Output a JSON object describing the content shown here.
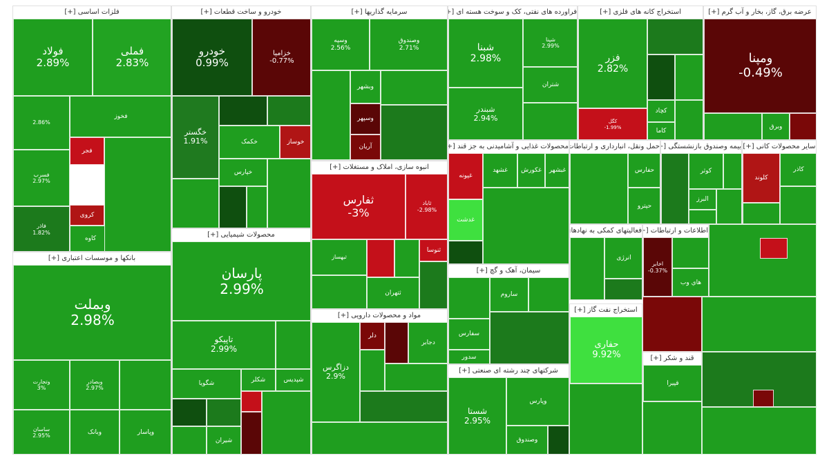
{
  "chart_data": {
    "type": "treemap",
    "title": "",
    "color_scale": {
      "strong_up": "#3fe03f",
      "up": "#1f9e1f",
      "flat_up": "#1c7a1c",
      "dark_green": "#0f4f0f",
      "down": "#c4101a",
      "strong_down": "#5a0606"
    },
    "sectors": [
      {
        "name": "فلزات اساسی [+]",
        "stocks": [
          {
            "symbol": "فولاد",
            "change": "2.89%",
            "color": "#1f9e1f"
          },
          {
            "symbol": "فملی",
            "change": "2.83%",
            "color": "#22a322"
          },
          {
            "symbol": "",
            "change": "2.86%",
            "color": "#1f9e1f"
          },
          {
            "symbol": "فخوز",
            "change": "",
            "color": "#1f9e1f"
          },
          {
            "symbol": "فجر",
            "change": "",
            "color": "#c4101a"
          },
          {
            "symbol": "فسرب",
            "change": "2.97%",
            "color": "#1f9e1f"
          },
          {
            "symbol": "فاذر",
            "change": "1.82%",
            "color": "#1c7a1c"
          },
          {
            "symbol": "کاوه",
            "change": "",
            "color": "#1f9e1f"
          },
          {
            "symbol": "کروی",
            "change": "",
            "color": "#b01515"
          }
        ]
      },
      {
        "name": "بانکها و موسسات اعتباری [+]",
        "stocks": [
          {
            "symbol": "وبملت",
            "change": "2.98%",
            "color": "#1f9e1f"
          },
          {
            "symbol": "وتجارت",
            "change": "3%",
            "color": "#1f9e1f"
          },
          {
            "symbol": "وبصادر",
            "change": "2.97%",
            "color": "#1f9e1f"
          },
          {
            "symbol": "ساسان",
            "change": "2.95%",
            "color": "#1f9e1f"
          },
          {
            "symbol": "وپاسار",
            "change": "",
            "color": "#1f9e1f"
          },
          {
            "symbol": "وبانک",
            "change": "",
            "color": "#1f9e1f"
          }
        ]
      },
      {
        "name": "خودرو و ساخت قطعات [+]",
        "stocks": [
          {
            "symbol": "خودرو",
            "change": "0.99%",
            "color": "#0f4f0f"
          },
          {
            "symbol": "خزامیا",
            "change": "-0.77%",
            "color": "#5a0606"
          },
          {
            "symbol": "خگستر",
            "change": "1.91%",
            "color": "#1f7a1f"
          },
          {
            "symbol": "خکمک",
            "change": "",
            "color": "#1f9e1f"
          },
          {
            "symbol": "خوساز",
            "change": "",
            "color": "#b01515"
          },
          {
            "symbol": "خپارس",
            "change": "",
            "color": "#1f9e1f"
          }
        ]
      },
      {
        "name": "محصولات شیمیایی [+]",
        "stocks": [
          {
            "symbol": "پارسان",
            "change": "2.99%",
            "color": "#1f9e1f"
          },
          {
            "symbol": "تاپیکو",
            "change": "2.99%",
            "color": "#1f9e1f"
          },
          {
            "symbol": "شکلر",
            "change": "",
            "color": "#1f9e1f"
          },
          {
            "symbol": "شپدیس",
            "change": "",
            "color": "#1f9e1f"
          },
          {
            "symbol": "شگویا",
            "change": "",
            "color": "#1f9e1f"
          },
          {
            "symbol": "شیران",
            "change": "",
            "color": "#1f9e1f"
          }
        ]
      },
      {
        "name": "سرمایه گذاریها [+]",
        "stocks": [
          {
            "symbol": "وسپه",
            "change": "2.56%",
            "color": "#1f9e1f"
          },
          {
            "symbol": "وصندوق",
            "change": "2.71%",
            "color": "#1f9e1f"
          },
          {
            "symbol": "وبشهر",
            "change": "",
            "color": "#1f9e1f"
          },
          {
            "symbol": "وسپهر",
            "change": "",
            "color": "#5a0606"
          },
          {
            "symbol": "آریان",
            "change": "",
            "color": "#7a0808"
          }
        ]
      },
      {
        "name": "انبوه سازی، املاک و مستغلات [+]",
        "stocks": [
          {
            "symbol": "ثفارس",
            "change": "-3%",
            "color": "#c4101a"
          },
          {
            "symbol": "ثاباد",
            "change": "-2.98%",
            "color": "#c4101a"
          },
          {
            "symbol": "ثنوسا",
            "change": "",
            "color": "#c4101a"
          },
          {
            "symbol": "ثبهساز",
            "change": "",
            "color": "#1f9e1f"
          },
          {
            "symbol": "ثتهران",
            "change": "",
            "color": "#1f9e1f"
          }
        ]
      },
      {
        "name": "مواد و محصولات دارویی [+]",
        "stocks": [
          {
            "symbol": "دزاگرس",
            "change": "2.9%",
            "color": "#1f9e1f"
          },
          {
            "symbol": "دجابر",
            "change": "",
            "color": "#1f9e1f"
          },
          {
            "symbol": "دلر",
            "change": "",
            "color": "#7a0808"
          }
        ]
      },
      {
        "name": "فراورده های نفتی، کک و سوخت هسته ای [+]",
        "stocks": [
          {
            "symbol": "شبنا",
            "change": "2.98%",
            "color": "#1f9e1f"
          },
          {
            "symbol": "شبندر",
            "change": "2.94%",
            "color": "#1f9e1f"
          },
          {
            "symbol": "شپنا",
            "change": "2.99%",
            "color": "#1f9e1f"
          },
          {
            "symbol": "شتران",
            "change": "",
            "color": "#1f9e1f"
          }
        ]
      },
      {
        "name": "محصولات غذایی و آشامیدنی به جز قند [+]",
        "stocks": [
          {
            "symbol": "غشهد",
            "change": "",
            "color": "#1f9e1f"
          },
          {
            "symbol": "غکورش",
            "change": "",
            "color": "#1f9e1f"
          },
          {
            "symbol": "غبشهر",
            "change": "",
            "color": "#1f9e1f"
          },
          {
            "symbol": "غدشت",
            "change": "",
            "color": "#3fe03f"
          },
          {
            "symbol": "غپونه",
            "change": "",
            "color": "#c4101a"
          }
        ]
      },
      {
        "name": "سیمان، آهک و گچ [+]",
        "stocks": [
          {
            "symbol": "سفارس",
            "change": "",
            "color": "#1f9e1f"
          },
          {
            "symbol": "ساروم",
            "change": "",
            "color": "#1f9e1f"
          },
          {
            "symbol": "سدور",
            "change": "",
            "color": "#1f9e1f"
          }
        ]
      },
      {
        "name": "شرکتهای چند رشته ای صنعتی [+]",
        "stocks": [
          {
            "symbol": "شستا",
            "change": "2.95%",
            "color": "#1f9e1f"
          },
          {
            "symbol": "وصندوق",
            "change": "",
            "color": "#1f9e1f"
          },
          {
            "symbol": "وپارس",
            "change": "",
            "color": "#1f9e1f"
          }
        ]
      },
      {
        "name": "استخراج کانه های فلزی [+]",
        "stocks": [
          {
            "symbol": "فزر",
            "change": "2.82%",
            "color": "#1f9e1f"
          },
          {
            "symbol": "کگل",
            "change": "-1.99%",
            "color": "#c4101a"
          },
          {
            "symbol": "کچاد",
            "change": "",
            "color": "#1f9e1f"
          },
          {
            "symbol": "کاما",
            "change": "",
            "color": "#1f9e1f"
          }
        ]
      },
      {
        "name": "عرضه برق، گاز، بخار و آب گرم [+]",
        "stocks": [
          {
            "symbol": "ومپنا",
            "change": "-0.49%",
            "color": "#5a0606"
          },
          {
            "symbol": "وبرق",
            "change": "",
            "color": "#1f9e1f"
          }
        ]
      },
      {
        "name": "حمل ونقل، انبارداری و ارتباطات [+]",
        "stocks": [
          {
            "symbol": "حفارس",
            "change": "",
            "color": "#1f9e1f"
          },
          {
            "symbol": "حپترو",
            "change": "",
            "color": "#1f9e1f"
          }
        ]
      },
      {
        "name": "بیمه وصندوق بازنشستگی [+]",
        "stocks": [
          {
            "symbol": "البرز",
            "change": "",
            "color": "#1f9e1f"
          },
          {
            "symbol": "کوثر",
            "change": "",
            "color": "#1f9e1f"
          }
        ]
      },
      {
        "name": "سایر محصولات کانی [+]",
        "stocks": [
          {
            "symbol": "کلوند",
            "change": "",
            "color": "#b01515"
          },
          {
            "symbol": "کاذر",
            "change": "",
            "color": "#1f9e1f"
          }
        ]
      },
      {
        "name": "فعالیتهای کمکی به نهادهای مالی واسط [+]",
        "stocks": [
          {
            "symbol": "انرژی",
            "change": "",
            "color": "#1f9e1f"
          }
        ]
      },
      {
        "name": "اطلاعات و ارتباطات [+]",
        "stocks": [
          {
            "symbol": "اخابر",
            "change": "-0.37%",
            "color": "#5a0606"
          },
          {
            "symbol": "هاي وب",
            "change": "",
            "color": "#1f9e1f"
          }
        ]
      },
      {
        "name": "استخراج نفت گاز [+]",
        "stocks": [
          {
            "symbol": "حفاری",
            "change": "9.92%",
            "color": "#3fe03f"
          }
        ]
      },
      {
        "name": "قند و شکر [+]",
        "stocks": [
          {
            "symbol": "قپیرا",
            "change": "",
            "color": "#1f9e1f"
          }
        ]
      }
    ]
  }
}
